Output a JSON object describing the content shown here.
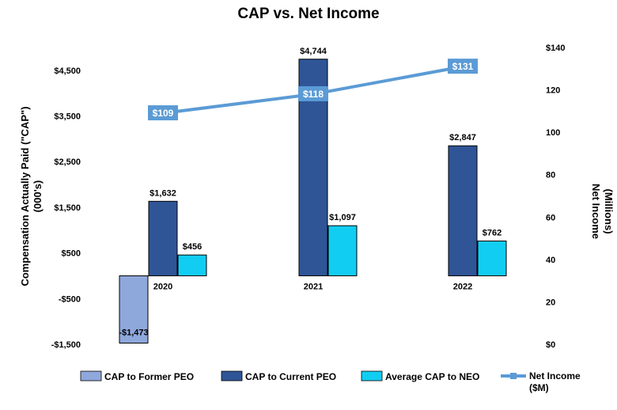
{
  "chart_data": {
    "type": "bar",
    "title": "CAP vs. Net Income",
    "categories": [
      "2020",
      "2021",
      "2022"
    ],
    "series": [
      {
        "name": "CAP to Former PEO",
        "values": [
          -1473,
          null,
          null
        ],
        "labels": [
          "-$1,473",
          "",
          ""
        ],
        "color": "#8fa8dc",
        "axis": "left"
      },
      {
        "name": "CAP to Current PEO",
        "values": [
          1632,
          4744,
          2847
        ],
        "labels": [
          "$1,632",
          "$4,744",
          "$2,847"
        ],
        "color": "#2f5597",
        "axis": "left"
      },
      {
        "name": "Average CAP to NEO",
        "values": [
          456,
          1097,
          762
        ],
        "labels": [
          "$456",
          "$1,097",
          "$762"
        ],
        "color": "#12cdf2",
        "axis": "left"
      }
    ],
    "line_series": {
      "name": "Net Income ($M)",
      "legend_lines": [
        "Net Income",
        "($M)"
      ],
      "values": [
        109,
        118,
        131
      ],
      "labels": [
        "$109",
        "$118",
        "$131"
      ],
      "color": "#5b9bd5",
      "axis": "right"
    },
    "left_axis": {
      "title_lines": [
        "Compensation Actually Paid (\"CAP\")",
        "(000's)"
      ],
      "ylim": [
        -1500,
        5000
      ],
      "ticks": [
        -1500,
        -500,
        500,
        1500,
        2500,
        3500,
        4500
      ],
      "tick_labels": [
        "-$1,500",
        "-$500",
        "$500",
        "$1,500",
        "$2,500",
        "$3,500",
        "$4,500"
      ]
    },
    "right_axis": {
      "title_lines": [
        "Net Income",
        "(Millions)"
      ],
      "ylim": [
        0,
        140
      ],
      "ticks": [
        0,
        20,
        40,
        60,
        80,
        100,
        120,
        140
      ],
      "tick_labels": [
        "$0",
        "20",
        "40",
        "60",
        "80",
        "100",
        "120",
        "$140"
      ]
    },
    "legend_position": "bottom",
    "grid": false
  }
}
